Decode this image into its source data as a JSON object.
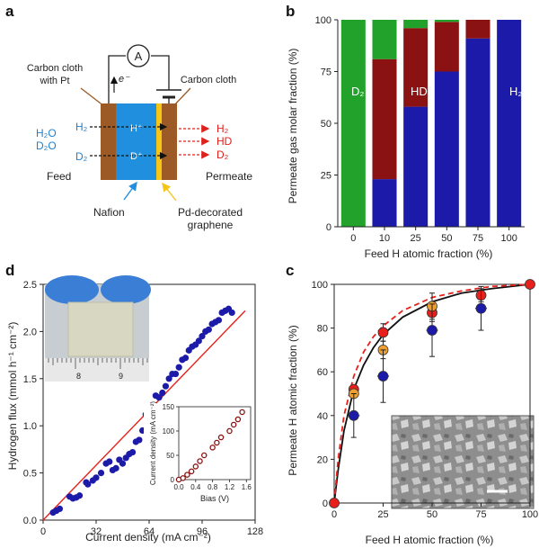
{
  "figure": {
    "panels": {
      "a": {
        "letter": "a",
        "labels": {
          "ammeter": "A",
          "electron": "e⁻",
          "left_electrode": "Carbon cloth with Pt",
          "right_electrode": "Carbon cloth",
          "feed_h2o": "H₂O",
          "feed_d2o": "D₂O",
          "feed": "Feed",
          "in_h2": "H₂",
          "in_d2": "D₂",
          "proton": "H⁺",
          "deuteron": "D⁺",
          "out_h2": "H₂",
          "out_hd": "HD",
          "out_d2": "D₂",
          "permeate": "Permeate",
          "nafion": "Nafion",
          "graphene": "Pd-decorated graphene"
        },
        "colors": {
          "carbon": "#9c5a26",
          "nafion": "#1f8fde",
          "graphene": "#f5c518",
          "feed_text": "#1f7fce",
          "permeate_text": "#e0201c"
        }
      },
      "b": {
        "letter": "b",
        "in_bar_labels": [
          "D₂",
          "HD",
          "H₂"
        ]
      },
      "c": {
        "letter": "c"
      },
      "d": {
        "letter": "d",
        "inset_ruler_ticks": [
          "8",
          "9"
        ]
      }
    }
  },
  "chart_data": [
    {
      "id": "b",
      "type": "bar",
      "stacked": true,
      "categories": [
        "0",
        "10",
        "25",
        "50",
        "75",
        "100"
      ],
      "series": [
        {
          "name": "H₂",
          "color": "#1c1aa8",
          "values": [
            0,
            23,
            58,
            75,
            91,
            100
          ]
        },
        {
          "name": "HD",
          "color": "#8b1212",
          "values": [
            0,
            58,
            38,
            24,
            9,
            0
          ]
        },
        {
          "name": "D₂",
          "color": "#22a22a",
          "values": [
            100,
            19,
            4,
            1,
            0,
            0
          ]
        }
      ],
      "xlabel": "Feed H atomic fraction (%)",
      "ylabel": "Permeate gas molar fraction (%)",
      "ylim": [
        0,
        100
      ],
      "yticks": [
        0,
        25,
        50,
        75,
        100
      ]
    },
    {
      "id": "c",
      "type": "scatter",
      "xlabel": "Feed H atomic fraction (%)",
      "ylabel": "Permeate H atomic fraction (%)",
      "xlim": [
        0,
        100
      ],
      "ylim": [
        0,
        100
      ],
      "xticks": [
        0,
        25,
        50,
        75,
        100
      ],
      "yticks": [
        0,
        20,
        40,
        60,
        80,
        100
      ],
      "series": [
        {
          "color": "#e8201c",
          "points": [
            [
              0,
              0
            ],
            [
              10,
              52
            ],
            [
              25,
              78
            ],
            [
              50,
              87
            ],
            [
              75,
              95
            ],
            [
              100,
              100
            ]
          ],
          "yerr": [
            0,
            2,
            4,
            4,
            3,
            0
          ]
        },
        {
          "color": "#f0a030",
          "points": [
            [
              10,
              50
            ],
            [
              25,
              70
            ],
            [
              50,
              90
            ]
          ],
          "yerr": [
            0,
            4,
            6
          ]
        },
        {
          "color": "#1c1aa8",
          "points": [
            [
              10,
              40
            ],
            [
              25,
              58
            ],
            [
              50,
              79
            ],
            [
              75,
              89
            ]
          ],
          "yerr": [
            10,
            12,
            12,
            10
          ],
          "xerr": [
            3,
            3,
            3,
            3
          ]
        }
      ],
      "curves": [
        {
          "style": "solid",
          "color": "#111111",
          "points": [
            [
              0,
              0
            ],
            [
              2,
              15
            ],
            [
              5,
              33
            ],
            [
              10,
              52
            ],
            [
              15,
              63
            ],
            [
              20,
              71
            ],
            [
              25,
              77
            ],
            [
              35,
              85
            ],
            [
              50,
              92
            ],
            [
              65,
              96
            ],
            [
              80,
              98
            ],
            [
              100,
              100
            ]
          ]
        },
        {
          "style": "dashed",
          "color": "#e8201c",
          "points": [
            [
              0,
              0
            ],
            [
              2,
              20
            ],
            [
              5,
              40
            ],
            [
              10,
              58
            ],
            [
              15,
              69
            ],
            [
              20,
              76
            ],
            [
              25,
              81
            ],
            [
              35,
              88
            ],
            [
              50,
              94
            ],
            [
              65,
              97
            ],
            [
              80,
              99
            ],
            [
              100,
              100
            ]
          ]
        }
      ],
      "inset": "SEM micrograph"
    },
    {
      "id": "d",
      "type": "scatter",
      "xlabel": "Current density (mA cm⁻²)",
      "ylabel": "Hydrogen flux (mmol h⁻¹ cm⁻²)",
      "xlim": [
        0,
        128
      ],
      "ylim": [
        0,
        2.5
      ],
      "xticks": [
        0,
        32,
        64,
        96,
        128
      ],
      "yticks": [
        0,
        0.5,
        1.0,
        1.5,
        2.0,
        2.5
      ],
      "point_color": "#1c1aa8",
      "points": [
        [
          6,
          0.08
        ],
        [
          8,
          0.1
        ],
        [
          10,
          0.12
        ],
        [
          16,
          0.25
        ],
        [
          18,
          0.23
        ],
        [
          20,
          0.24
        ],
        [
          22,
          0.26
        ],
        [
          26,
          0.4
        ],
        [
          27,
          0.38
        ],
        [
          30,
          0.42
        ],
        [
          32,
          0.45
        ],
        [
          35,
          0.5
        ],
        [
          38,
          0.6
        ],
        [
          40,
          0.62
        ],
        [
          42,
          0.53
        ],
        [
          44,
          0.55
        ],
        [
          46,
          0.64
        ],
        [
          48,
          0.6
        ],
        [
          50,
          0.66
        ],
        [
          52,
          0.7
        ],
        [
          54,
          0.72
        ],
        [
          56,
          0.83
        ],
        [
          58,
          0.85
        ],
        [
          60,
          0.95
        ],
        [
          62,
          1.12
        ],
        [
          64,
          1.14
        ],
        [
          66,
          1.2
        ],
        [
          68,
          1.32
        ],
        [
          70,
          1.3
        ],
        [
          72,
          1.35
        ],
        [
          74,
          1.42
        ],
        [
          76,
          1.5
        ],
        [
          78,
          1.55
        ],
        [
          80,
          1.55
        ],
        [
          82,
          1.62
        ],
        [
          84,
          1.7
        ],
        [
          86,
          1.72
        ],
        [
          88,
          1.8
        ],
        [
          90,
          1.84
        ],
        [
          92,
          1.86
        ],
        [
          94,
          1.9
        ],
        [
          96,
          1.95
        ],
        [
          98,
          2.0
        ],
        [
          100,
          2.02
        ],
        [
          102,
          2.08
        ],
        [
          104,
          2.1
        ],
        [
          106,
          2.12
        ],
        [
          108,
          2.2
        ],
        [
          110,
          2.22
        ],
        [
          112,
          2.24
        ],
        [
          114,
          2.2
        ]
      ],
      "fit_line": {
        "color": "#e8201c",
        "from": [
          0,
          0
        ],
        "to": [
          122,
          2.22
        ]
      },
      "inset_chart": {
        "type": "scatter",
        "xlabel": "Bias (V)",
        "ylabel": "Current density (mA cm⁻²)",
        "xlim": [
          0,
          1.7
        ],
        "ylim": [
          0,
          150
        ],
        "xticks": [
          0,
          0.4,
          0.8,
          1.2,
          1.6
        ],
        "xtick_labels": [
          "0.0",
          "0.4",
          "0.8",
          "1.2",
          "1.6"
        ],
        "yticks": [
          0,
          50,
          100,
          150
        ],
        "marker_color": "#8b1212",
        "points": [
          [
            0.0,
            0
          ],
          [
            0.1,
            3
          ],
          [
            0.2,
            10
          ],
          [
            0.3,
            17
          ],
          [
            0.4,
            27
          ],
          [
            0.5,
            38
          ],
          [
            0.6,
            50
          ],
          [
            0.8,
            66
          ],
          [
            0.9,
            76
          ],
          [
            1.0,
            87
          ],
          [
            1.2,
            100
          ],
          [
            1.3,
            113
          ],
          [
            1.4,
            124
          ],
          [
            1.5,
            139
          ]
        ]
      }
    }
  ]
}
